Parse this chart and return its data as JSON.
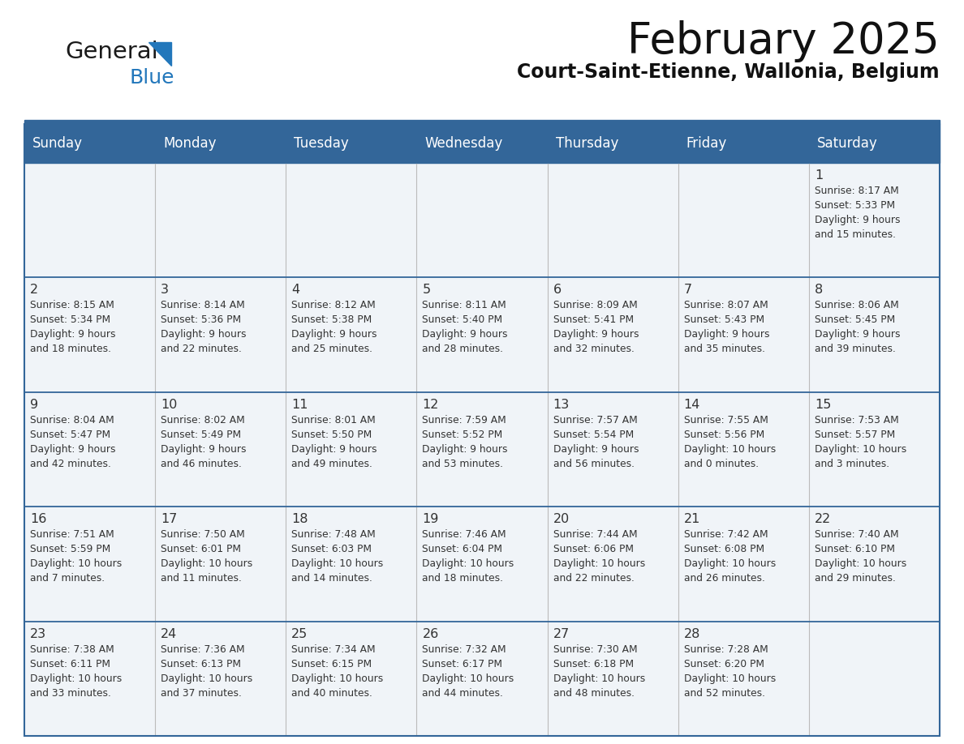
{
  "title": "February 2025",
  "subtitle": "Court-Saint-Etienne, Wallonia, Belgium",
  "header_color": "#336699",
  "header_text_color": "#FFFFFF",
  "background_color": "#FFFFFF",
  "cell_bg_color": "#F0F4F8",
  "cell_line_color": "#336699",
  "cell_divider_color": "#BBBBBB",
  "text_color": "#333333",
  "day_headers": [
    "Sunday",
    "Monday",
    "Tuesday",
    "Wednesday",
    "Thursday",
    "Friday",
    "Saturday"
  ],
  "logo_general_color": "#1a1a1a",
  "logo_blue_color": "#2277BB",
  "weeks": [
    [
      {
        "day": "",
        "info": ""
      },
      {
        "day": "",
        "info": ""
      },
      {
        "day": "",
        "info": ""
      },
      {
        "day": "",
        "info": ""
      },
      {
        "day": "",
        "info": ""
      },
      {
        "day": "",
        "info": ""
      },
      {
        "day": "1",
        "info": "Sunrise: 8:17 AM\nSunset: 5:33 PM\nDaylight: 9 hours\nand 15 minutes."
      }
    ],
    [
      {
        "day": "2",
        "info": "Sunrise: 8:15 AM\nSunset: 5:34 PM\nDaylight: 9 hours\nand 18 minutes."
      },
      {
        "day": "3",
        "info": "Sunrise: 8:14 AM\nSunset: 5:36 PM\nDaylight: 9 hours\nand 22 minutes."
      },
      {
        "day": "4",
        "info": "Sunrise: 8:12 AM\nSunset: 5:38 PM\nDaylight: 9 hours\nand 25 minutes."
      },
      {
        "day": "5",
        "info": "Sunrise: 8:11 AM\nSunset: 5:40 PM\nDaylight: 9 hours\nand 28 minutes."
      },
      {
        "day": "6",
        "info": "Sunrise: 8:09 AM\nSunset: 5:41 PM\nDaylight: 9 hours\nand 32 minutes."
      },
      {
        "day": "7",
        "info": "Sunrise: 8:07 AM\nSunset: 5:43 PM\nDaylight: 9 hours\nand 35 minutes."
      },
      {
        "day": "8",
        "info": "Sunrise: 8:06 AM\nSunset: 5:45 PM\nDaylight: 9 hours\nand 39 minutes."
      }
    ],
    [
      {
        "day": "9",
        "info": "Sunrise: 8:04 AM\nSunset: 5:47 PM\nDaylight: 9 hours\nand 42 minutes."
      },
      {
        "day": "10",
        "info": "Sunrise: 8:02 AM\nSunset: 5:49 PM\nDaylight: 9 hours\nand 46 minutes."
      },
      {
        "day": "11",
        "info": "Sunrise: 8:01 AM\nSunset: 5:50 PM\nDaylight: 9 hours\nand 49 minutes."
      },
      {
        "day": "12",
        "info": "Sunrise: 7:59 AM\nSunset: 5:52 PM\nDaylight: 9 hours\nand 53 minutes."
      },
      {
        "day": "13",
        "info": "Sunrise: 7:57 AM\nSunset: 5:54 PM\nDaylight: 9 hours\nand 56 minutes."
      },
      {
        "day": "14",
        "info": "Sunrise: 7:55 AM\nSunset: 5:56 PM\nDaylight: 10 hours\nand 0 minutes."
      },
      {
        "day": "15",
        "info": "Sunrise: 7:53 AM\nSunset: 5:57 PM\nDaylight: 10 hours\nand 3 minutes."
      }
    ],
    [
      {
        "day": "16",
        "info": "Sunrise: 7:51 AM\nSunset: 5:59 PM\nDaylight: 10 hours\nand 7 minutes."
      },
      {
        "day": "17",
        "info": "Sunrise: 7:50 AM\nSunset: 6:01 PM\nDaylight: 10 hours\nand 11 minutes."
      },
      {
        "day": "18",
        "info": "Sunrise: 7:48 AM\nSunset: 6:03 PM\nDaylight: 10 hours\nand 14 minutes."
      },
      {
        "day": "19",
        "info": "Sunrise: 7:46 AM\nSunset: 6:04 PM\nDaylight: 10 hours\nand 18 minutes."
      },
      {
        "day": "20",
        "info": "Sunrise: 7:44 AM\nSunset: 6:06 PM\nDaylight: 10 hours\nand 22 minutes."
      },
      {
        "day": "21",
        "info": "Sunrise: 7:42 AM\nSunset: 6:08 PM\nDaylight: 10 hours\nand 26 minutes."
      },
      {
        "day": "22",
        "info": "Sunrise: 7:40 AM\nSunset: 6:10 PM\nDaylight: 10 hours\nand 29 minutes."
      }
    ],
    [
      {
        "day": "23",
        "info": "Sunrise: 7:38 AM\nSunset: 6:11 PM\nDaylight: 10 hours\nand 33 minutes."
      },
      {
        "day": "24",
        "info": "Sunrise: 7:36 AM\nSunset: 6:13 PM\nDaylight: 10 hours\nand 37 minutes."
      },
      {
        "day": "25",
        "info": "Sunrise: 7:34 AM\nSunset: 6:15 PM\nDaylight: 10 hours\nand 40 minutes."
      },
      {
        "day": "26",
        "info": "Sunrise: 7:32 AM\nSunset: 6:17 PM\nDaylight: 10 hours\nand 44 minutes."
      },
      {
        "day": "27",
        "info": "Sunrise: 7:30 AM\nSunset: 6:18 PM\nDaylight: 10 hours\nand 48 minutes."
      },
      {
        "day": "28",
        "info": "Sunrise: 7:28 AM\nSunset: 6:20 PM\nDaylight: 10 hours\nand 52 minutes."
      },
      {
        "day": "",
        "info": ""
      }
    ]
  ]
}
